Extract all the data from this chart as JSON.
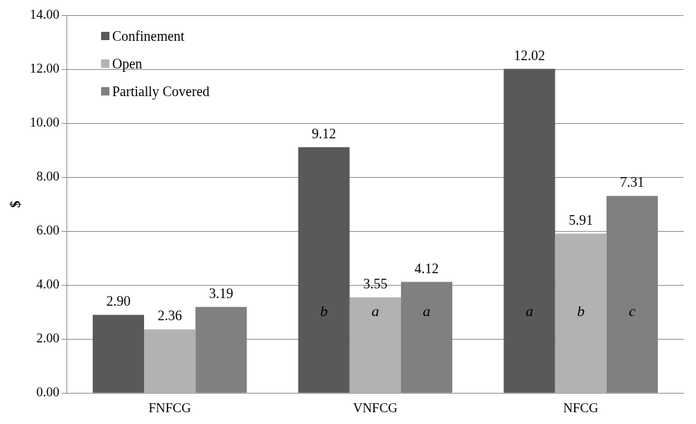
{
  "chart_data": {
    "type": "bar",
    "ylabel": "$",
    "categories": [
      "FNFCG",
      "VNFCG",
      "NFCG"
    ],
    "series": [
      {
        "name": "Confinement",
        "color": "#595959",
        "values": [
          2.9,
          9.12,
          12.02
        ],
        "value_labels": [
          "2.90",
          "9.12",
          "12.02"
        ]
      },
      {
        "name": "Open",
        "color": "#b2b2b2",
        "values": [
          2.36,
          3.55,
          5.91
        ],
        "value_labels": [
          "2.36",
          "3.55",
          "5.91"
        ]
      },
      {
        "name": "Partially Covered",
        "color": "#808080",
        "values": [
          3.19,
          4.12,
          7.31
        ],
        "value_labels": [
          "3.19",
          "4.12",
          "7.31"
        ]
      }
    ],
    "ylim": [
      0,
      14
    ],
    "yticks": [
      {
        "value": 0,
        "label": "0.00"
      },
      {
        "value": 2,
        "label": "2.00"
      },
      {
        "value": 4,
        "label": "4.00"
      },
      {
        "value": 6,
        "label": "6.00"
      },
      {
        "value": 8,
        "label": "8.00"
      },
      {
        "value": 10,
        "label": "10.00"
      },
      {
        "value": 12,
        "label": "12.00"
      },
      {
        "value": 14,
        "label": "14.00"
      }
    ],
    "grid": "y",
    "legend": "top left",
    "annotations": [
      "b",
      "a",
      "a",
      "a",
      "b",
      "c"
    ]
  }
}
